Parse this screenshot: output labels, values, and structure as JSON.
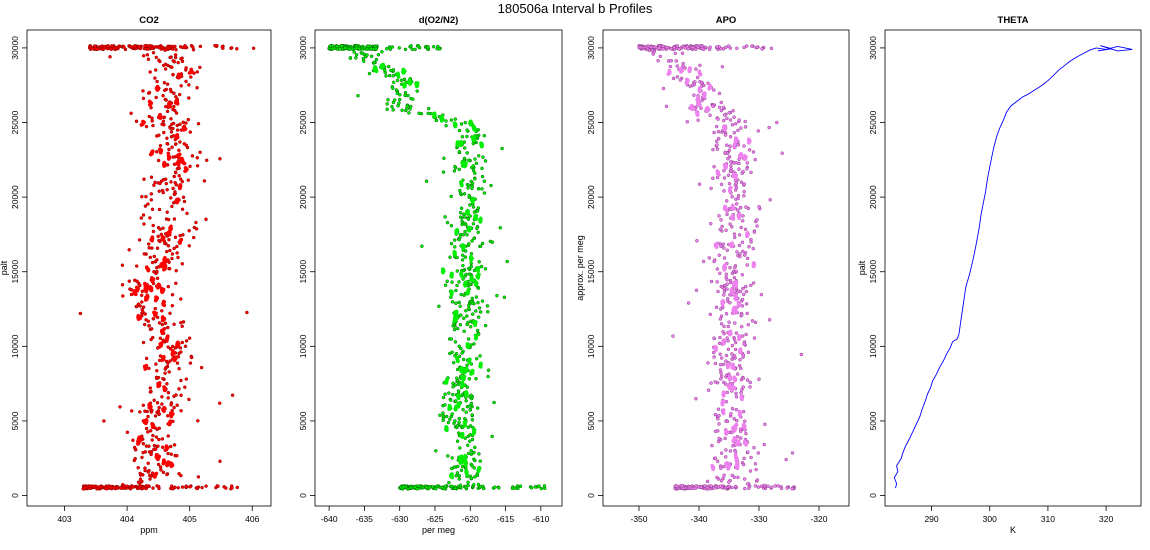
{
  "title": "180506a   Interval b Profiles",
  "chart_data": [
    {
      "type": "scatter",
      "title": "CO2",
      "xlabel": "ppm",
      "ylabel": "palt",
      "xlim": [
        402.4,
        406.3
      ],
      "ylim": [
        -700,
        31200
      ],
      "xticks": [
        403,
        404,
        405,
        406
      ],
      "yticks": [
        0,
        5000,
        10000,
        15000,
        20000,
        25000,
        30000
      ],
      "color": "#ff0000",
      "outline": "#8b0000",
      "profile": [
        [
          0,
          404.3
        ],
        [
          2000,
          404.45
        ],
        [
          4000,
          404.4
        ],
        [
          6000,
          404.55
        ],
        [
          8000,
          404.6
        ],
        [
          10000,
          404.65
        ],
        [
          12000,
          404.45
        ],
        [
          14000,
          404.3
        ],
        [
          16000,
          404.6
        ],
        [
          18000,
          404.7
        ],
        [
          20000,
          404.6
        ],
        [
          22000,
          404.8
        ],
        [
          24000,
          404.7
        ],
        [
          26000,
          404.6
        ],
        [
          28000,
          404.8
        ],
        [
          30000,
          404.6
        ]
      ],
      "spread": 0.2,
      "top_band": [
        403.4,
        406.2
      ],
      "bottom_band": [
        403.3,
        405.8
      ]
    },
    {
      "type": "scatter",
      "title": "d(O2/N2)",
      "xlabel": "per meg",
      "ylabel": "",
      "xlim": [
        -642,
        -607
      ],
      "ylim": [
        -700,
        31200
      ],
      "xticks": [
        -640,
        -635,
        -630,
        -625,
        -620,
        -615,
        -610
      ],
      "yticks": [
        0,
        5000,
        10000,
        15000,
        20000,
        25000,
        30000
      ],
      "color": "#00ee00",
      "outline": "#006400",
      "profile": [
        [
          0,
          -620.5
        ],
        [
          3000,
          -620.8
        ],
        [
          6000,
          -621.5
        ],
        [
          9000,
          -621
        ],
        [
          12000,
          -620.2
        ],
        [
          15000,
          -620.8
        ],
        [
          18000,
          -620
        ],
        [
          21000,
          -620.5
        ],
        [
          24000,
          -620
        ],
        [
          25000,
          -622
        ],
        [
          26000,
          -630
        ],
        [
          27500,
          -628
        ],
        [
          29000,
          -634
        ],
        [
          30000,
          -636
        ]
      ],
      "spread": 1.3,
      "top_band": [
        -640,
        -624
      ],
      "bottom_band": [
        -630,
        -609
      ]
    },
    {
      "type": "scatter",
      "title": "APO",
      "xlabel": "",
      "ylabel": "approx. per meg",
      "xlim": [
        -356,
        -315
      ],
      "ylim": [
        -700,
        31200
      ],
      "xticks": [
        -350,
        -340,
        -330,
        -320
      ],
      "yticks": [
        0,
        5000,
        10000,
        15000,
        20000,
        25000,
        30000
      ],
      "color": "#ee82ee",
      "outline": "#8b3a8b",
      "profile": [
        [
          0,
          -334
        ],
        [
          3000,
          -334
        ],
        [
          6000,
          -334.5
        ],
        [
          9000,
          -335
        ],
        [
          12000,
          -334
        ],
        [
          15000,
          -334.5
        ],
        [
          18000,
          -333.5
        ],
        [
          21000,
          -334
        ],
        [
          24000,
          -334
        ],
        [
          26000,
          -338
        ],
        [
          28000,
          -341
        ],
        [
          30000,
          -347
        ]
      ],
      "spread": 1.8,
      "top_band": [
        -350,
        -326
      ],
      "bottom_band": [
        -344,
        -324
      ]
    },
    {
      "type": "line",
      "title": "THETA",
      "xlabel": "K",
      "ylabel": "palt",
      "xlim": [
        282,
        326
      ],
      "ylim": [
        -700,
        31200
      ],
      "xticks": [
        290,
        300,
        310,
        320
      ],
      "yticks": [
        0,
        5000,
        10000,
        15000,
        20000,
        25000,
        30000
      ],
      "color": "#0000ff",
      "points": [
        [
          283.8,
          500
        ],
        [
          284.0,
          800
        ],
        [
          283.6,
          1200
        ],
        [
          284.2,
          1600
        ],
        [
          284.0,
          2000
        ],
        [
          284.8,
          2500
        ],
        [
          285.0,
          2800
        ],
        [
          285.5,
          3300
        ],
        [
          286.2,
          3800
        ],
        [
          286.8,
          4300
        ],
        [
          287.4,
          4800
        ],
        [
          288.0,
          5300
        ],
        [
          288.4,
          5800
        ],
        [
          288.9,
          6300
        ],
        [
          289.3,
          6800
        ],
        [
          289.8,
          7200
        ],
        [
          290.2,
          7700
        ],
        [
          290.8,
          8100
        ],
        [
          291.4,
          8600
        ],
        [
          292.0,
          9000
        ],
        [
          292.6,
          9500
        ],
        [
          293.2,
          9900
        ],
        [
          293.6,
          10300
        ],
        [
          294.4,
          10500
        ],
        [
          294.7,
          10800
        ],
        [
          295.0,
          11600
        ],
        [
          295.3,
          12400
        ],
        [
          295.6,
          13200
        ],
        [
          295.9,
          14000
        ],
        [
          296.5,
          14800
        ],
        [
          297.0,
          15600
        ],
        [
          297.4,
          16300
        ],
        [
          297.8,
          17100
        ],
        [
          298.2,
          18000
        ],
        [
          298.5,
          18800
        ],
        [
          298.9,
          19600
        ],
        [
          299.3,
          20400
        ],
        [
          299.6,
          21200
        ],
        [
          300.0,
          22000
        ],
        [
          300.4,
          22800
        ],
        [
          300.8,
          23500
        ],
        [
          301.3,
          24200
        ],
        [
          301.8,
          24700
        ],
        [
          302.4,
          25200
        ],
        [
          302.9,
          25700
        ],
        [
          303.6,
          26100
        ],
        [
          304.6,
          26400
        ],
        [
          305.6,
          26700
        ],
        [
          306.6,
          26900
        ],
        [
          307.8,
          27200
        ],
        [
          309.0,
          27500
        ],
        [
          310.0,
          27800
        ],
        [
          310.8,
          28100
        ],
        [
          311.8,
          28500
        ],
        [
          312.8,
          28800
        ],
        [
          313.8,
          29100
        ],
        [
          315.0,
          29400
        ],
        [
          316.2,
          29650
        ],
        [
          317.2,
          29850
        ],
        [
          318.3,
          30000
        ],
        [
          320.0,
          29900
        ],
        [
          322.0,
          30100
        ],
        [
          324.5,
          29900
        ],
        [
          322.0,
          29800
        ],
        [
          319.0,
          30150
        ],
        [
          321.0,
          29950
        ],
        [
          318.6,
          29800
        ]
      ]
    }
  ]
}
